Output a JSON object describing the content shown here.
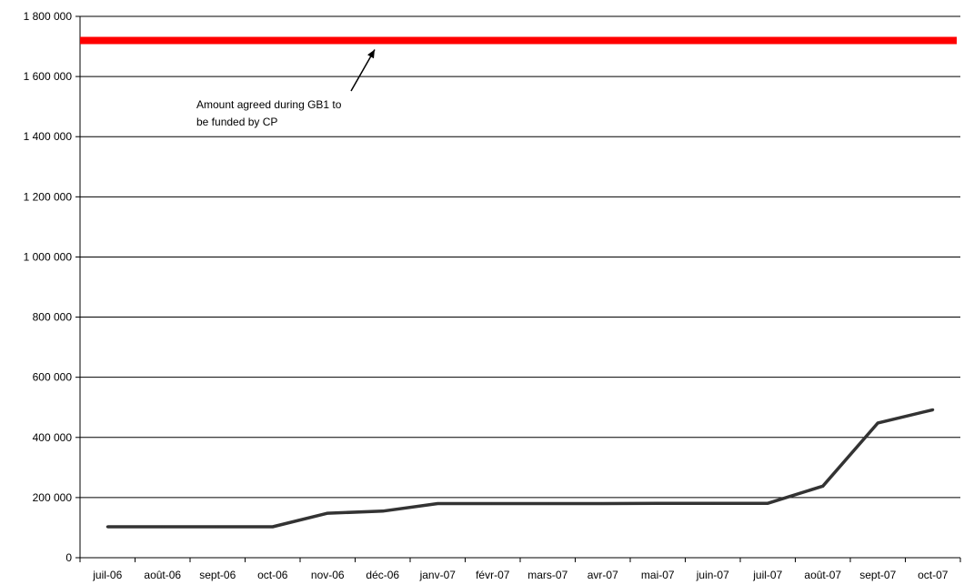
{
  "chart_data": {
    "type": "line",
    "x": [
      "juil-06",
      "août-06",
      "sept-06",
      "oct-06",
      "nov-06",
      "déc-06",
      "janv-07",
      "févr-07",
      "mars-07",
      "avr-07",
      "mai-07",
      "juin-07",
      "juil-07",
      "août-07",
      "sept-07",
      "oct-07"
    ],
    "ylim": [
      0,
      1800000
    ],
    "yticks": [
      0,
      200000,
      400000,
      600000,
      800000,
      1000000,
      1200000,
      1400000,
      1600000,
      1800000
    ],
    "ytick_labels": [
      "0",
      "200 000",
      "400 000",
      "600 000",
      "800 000",
      "1 000 000",
      "1 200 000",
      "1 400 000",
      "1 600 000",
      "1 800 000"
    ],
    "grid": "horizontal",
    "series": [
      {
        "values": [
          103000,
          103000,
          103000,
          103000,
          148000,
          155000,
          180000,
          180000,
          180000,
          180000,
          181000,
          181000,
          181000,
          238000,
          448000,
          492000
        ],
        "color": "#333333"
      }
    ],
    "reference_line": {
      "value": 1720000,
      "color": "#ff0000"
    },
    "annotation": {
      "lines": [
        "Amount agreed during GB1 to",
        "be funded by CP"
      ]
    }
  }
}
